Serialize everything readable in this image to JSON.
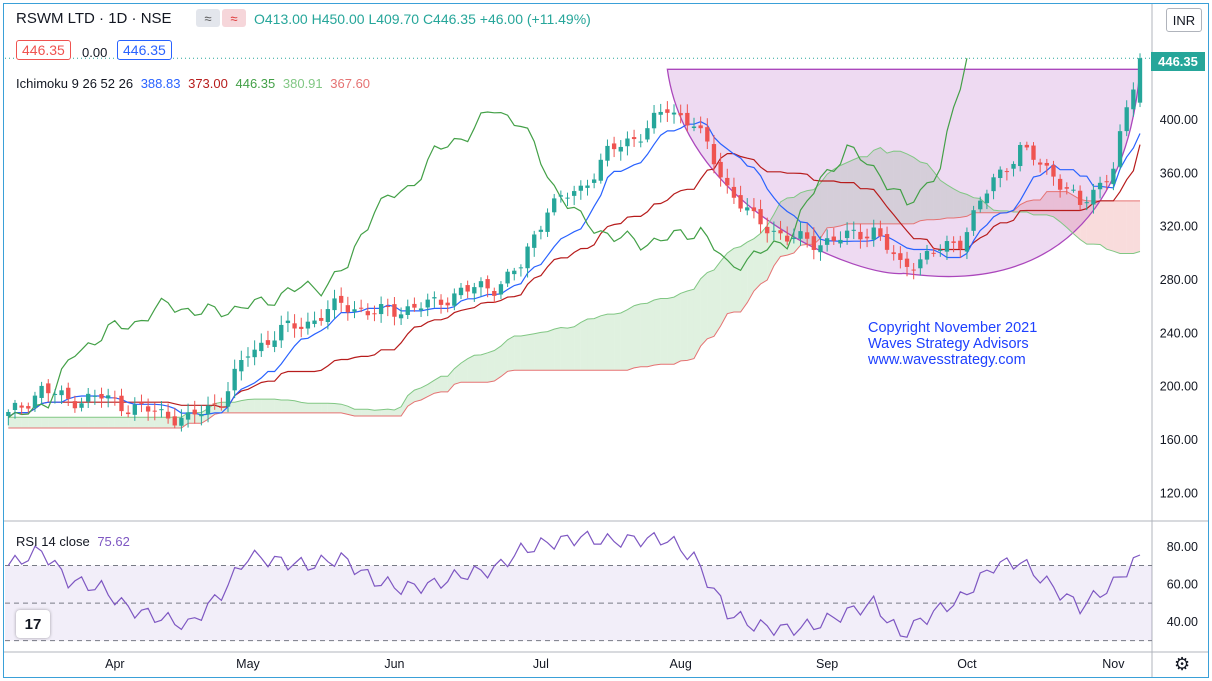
{
  "header": {
    "symbol": "RSWM LTD · 1D · NSE",
    "ohlc_o": "O413.00",
    "ohlc_h": "H450.00",
    "ohlc_l": "L409.70",
    "ohlc_c": "C446.35",
    "change": "+46.00 (+11.49%)",
    "bid": "446.35",
    "spread": "0.00",
    "ask": "446.35",
    "compare_icon": "≈"
  },
  "indicator": {
    "label": "Ichimoku 9 26 52 26",
    "v1": "388.83",
    "v2": "373.00",
    "v3": "446.35",
    "v4": "380.91",
    "v5": "367.60"
  },
  "rsi": {
    "label": "RSI 14 close",
    "value": "75.62"
  },
  "currency": "INR",
  "last_price_tag": "446.35",
  "watermark": {
    "line1": "Copyright November 2021",
    "line2": "Waves Strategy Advisors",
    "line3": "www.wavesstrategy.com"
  },
  "logo_text": "17",
  "colors": {
    "up": "#26a69a",
    "down": "#ef5350",
    "tenkan": "#2962ff",
    "kijun": "#b71c1c",
    "chikou": "#43a047",
    "cloud_bull": "#a5d6a7",
    "cloud_bear": "#ef9a9a",
    "rsi_line": "#7e57c2",
    "cup": "#ab47bc",
    "accent": "#3aa0d8"
  },
  "chart_data": [
    {
      "type": "candlestick",
      "title": "RSWM LTD · 1D · NSE",
      "ylim": [
        100,
        460
      ],
      "y_ticks": [
        "120.00",
        "160.00",
        "200.00",
        "240.00",
        "280.00",
        "320.00",
        "360.00",
        "400.00",
        "440.00"
      ],
      "x_ticks": [
        "Apr",
        "May",
        "Jun",
        "Jul",
        "Aug",
        "Sep",
        "Oct",
        "Nov"
      ],
      "close_series": [
        {
          "t": 0,
          "v": 178
        },
        {
          "t": 5,
          "v": 198
        },
        {
          "t": 9,
          "v": 190
        },
        {
          "t": 14,
          "v": 192
        },
        {
          "t": 18,
          "v": 185
        },
        {
          "t": 23,
          "v": 180
        },
        {
          "t": 27,
          "v": 175
        },
        {
          "t": 32,
          "v": 190
        },
        {
          "t": 36,
          "v": 225
        },
        {
          "t": 41,
          "v": 242
        },
        {
          "t": 45,
          "v": 248
        },
        {
          "t": 50,
          "v": 262
        },
        {
          "t": 55,
          "v": 255
        },
        {
          "t": 59,
          "v": 258
        },
        {
          "t": 64,
          "v": 262
        },
        {
          "t": 68,
          "v": 272
        },
        {
          "t": 73,
          "v": 275
        },
        {
          "t": 77,
          "v": 290
        },
        {
          "t": 81,
          "v": 335
        },
        {
          "t": 86,
          "v": 348
        },
        {
          "t": 90,
          "v": 375
        },
        {
          "t": 95,
          "v": 390
        },
        {
          "t": 99,
          "v": 408
        },
        {
          "t": 103,
          "v": 398
        },
        {
          "t": 108,
          "v": 350
        },
        {
          "t": 112,
          "v": 325
        },
        {
          "t": 117,
          "v": 312
        },
        {
          "t": 121,
          "v": 308
        },
        {
          "t": 126,
          "v": 312
        },
        {
          "t": 130,
          "v": 318
        },
        {
          "t": 134,
          "v": 290
        },
        {
          "t": 139,
          "v": 300
        },
        {
          "t": 143,
          "v": 310
        },
        {
          "t": 148,
          "v": 355
        },
        {
          "t": 152,
          "v": 378
        },
        {
          "t": 157,
          "v": 360
        },
        {
          "t": 161,
          "v": 335
        },
        {
          "t": 166,
          "v": 365
        },
        {
          "t": 170,
          "v": 446.35
        }
      ],
      "annotation": "Rounding bottom (cup) formation from Aug peak ~438 to low ~285 and back to ~438"
    },
    {
      "type": "line",
      "title": "RSI 14 close",
      "ylim": [
        25,
        90
      ],
      "y_ticks": [
        "40.00",
        "60.00",
        "80.00"
      ],
      "bands": [
        30,
        50,
        70
      ],
      "points": [
        {
          "t": 0,
          "v": 70
        },
        {
          "t": 5,
          "v": 78
        },
        {
          "t": 9,
          "v": 62
        },
        {
          "t": 14,
          "v": 58
        },
        {
          "t": 18,
          "v": 47
        },
        {
          "t": 23,
          "v": 42
        },
        {
          "t": 27,
          "v": 38
        },
        {
          "t": 32,
          "v": 55
        },
        {
          "t": 36,
          "v": 75
        },
        {
          "t": 41,
          "v": 72
        },
        {
          "t": 45,
          "v": 70
        },
        {
          "t": 50,
          "v": 74
        },
        {
          "t": 55,
          "v": 62
        },
        {
          "t": 59,
          "v": 58
        },
        {
          "t": 64,
          "v": 60
        },
        {
          "t": 68,
          "v": 65
        },
        {
          "t": 73,
          "v": 68
        },
        {
          "t": 77,
          "v": 78
        },
        {
          "t": 81,
          "v": 82
        },
        {
          "t": 86,
          "v": 85
        },
        {
          "t": 90,
          "v": 83
        },
        {
          "t": 95,
          "v": 84
        },
        {
          "t": 99,
          "v": 84
        },
        {
          "t": 103,
          "v": 74
        },
        {
          "t": 108,
          "v": 45
        },
        {
          "t": 112,
          "v": 38
        },
        {
          "t": 117,
          "v": 36
        },
        {
          "t": 121,
          "v": 38
        },
        {
          "t": 126,
          "v": 45
        },
        {
          "t": 130,
          "v": 50
        },
        {
          "t": 134,
          "v": 33
        },
        {
          "t": 139,
          "v": 45
        },
        {
          "t": 143,
          "v": 52
        },
        {
          "t": 148,
          "v": 70
        },
        {
          "t": 152,
          "v": 72
        },
        {
          "t": 157,
          "v": 58
        },
        {
          "t": 161,
          "v": 48
        },
        {
          "t": 166,
          "v": 60
        },
        {
          "t": 170,
          "v": 75.62
        }
      ]
    }
  ]
}
